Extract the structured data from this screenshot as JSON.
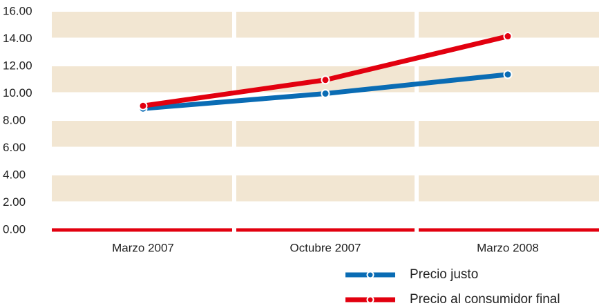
{
  "chart_data": {
    "type": "line",
    "categories": [
      "Marzo 2007",
      "Octubre 2007",
      "Marzo 2008"
    ],
    "series": [
      {
        "name": "Precio justo",
        "color": "#0a6cb4",
        "values": [
          8.9,
          10.0,
          11.4
        ]
      },
      {
        "name": "Precio al consumidor final",
        "color": "#e2000f",
        "values": [
          9.1,
          11.0,
          14.2
        ]
      }
    ],
    "ylim": [
      0,
      16
    ],
    "yticks": [
      {
        "value": 0,
        "label": "0.00"
      },
      {
        "value": 2,
        "label": "2.00"
      },
      {
        "value": 4,
        "label": "4.00"
      },
      {
        "value": 6,
        "label": "6.00"
      },
      {
        "value": 8,
        "label": "8.00"
      },
      {
        "value": 10,
        "label": "10.00"
      },
      {
        "value": 12,
        "label": "12.00"
      },
      {
        "value": 14,
        "label": "14.00"
      },
      {
        "value": 16,
        "label": "16.00"
      }
    ],
    "band_color": "#f2e6d2",
    "legend": "bottom-right"
  }
}
